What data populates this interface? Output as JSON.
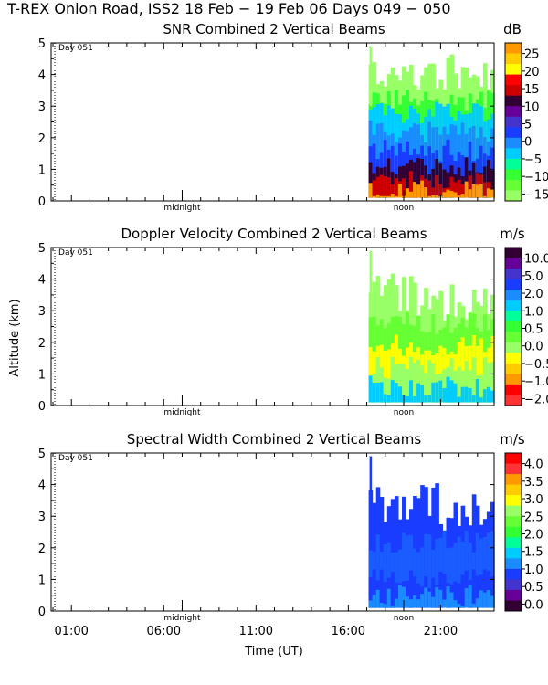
{
  "header": {
    "title": "T-REX Onion Road, ISS2  18 Feb − 19 Feb 06 Days 049 − 050"
  },
  "axes": {
    "ylabel": "Altitude (km)",
    "xlabel": "Time (UT)",
    "ylim": [
      0,
      5
    ],
    "yticks": [
      "0",
      "1",
      "2",
      "3",
      "4",
      "5"
    ],
    "xticks": [
      {
        "hour": 1,
        "label": "01:00"
      },
      {
        "hour": 6,
        "label": "06:00"
      },
      {
        "hour": 11,
        "label": "11:00"
      },
      {
        "hour": 16,
        "label": "16:00"
      },
      {
        "hour": 21,
        "label": "21:00"
      }
    ],
    "xlim_hours": [
      -0.1,
      23.9
    ],
    "midnight_label": "midnight",
    "noon_label": "noon",
    "day_label": "Day 051",
    "day_marker_hour": 0.1
  },
  "chart_data": [
    {
      "type": "heatmap",
      "title": "SNR Combined 2 Vertical Beams",
      "unit": "dB",
      "colorbar_ticks": [
        "25",
        "20",
        "15",
        "10",
        "5",
        "0",
        "−5",
        "−10",
        "−15"
      ],
      "colorbar_colors": [
        "#ff9900",
        "#ffcc00",
        "#ffff00",
        "#ff0000",
        "#cc0000",
        "#330033",
        "#660099",
        "#4433cc",
        "#1a3cff",
        "#1a8cff",
        "#00ccff",
        "#00ff99",
        "#33ff33",
        "#66ff33",
        "#99ff66"
      ],
      "data_window_hours": [
        17.1,
        23.9
      ],
      "layers": [
        {
          "top_km": 4.1,
          "color": "#99ff66"
        },
        {
          "top_km": 3.2,
          "color": "#33ff33"
        },
        {
          "top_km": 2.8,
          "color": "#00ccff"
        },
        {
          "top_km": 2.2,
          "color": "#1a8cff"
        },
        {
          "top_km": 1.6,
          "color": "#1a3cff"
        },
        {
          "top_km": 1.1,
          "color": "#330033"
        },
        {
          "top_km": 0.6,
          "color": "#cc0000"
        },
        {
          "top_km": 0.3,
          "color": "#ff9900"
        }
      ]
    },
    {
      "type": "heatmap",
      "title": "Doppler Velocity Combined 2 Vertical Beams",
      "unit": "m/s",
      "colorbar_ticks": [
        "10.0",
        "5.0",
        "2.0",
        "1.0",
        "0.5",
        "0.0",
        "−0.5",
        "−1.0",
        "−2.0"
      ],
      "colorbar_colors": [
        "#330033",
        "#660099",
        "#4433cc",
        "#1a3cff",
        "#1a8cff",
        "#00ccff",
        "#00ff99",
        "#33ff33",
        "#66ff33",
        "#99ff66",
        "#ffff00",
        "#ffcc00",
        "#ff9900",
        "#ff0000",
        "#ff3333"
      ],
      "data_window_hours": [
        17.1,
        23.9
      ],
      "layers": [
        {
          "top_km": 3.5,
          "color": "#99ff66"
        },
        {
          "top_km": 2.6,
          "color": "#66ff33"
        },
        {
          "top_km": 1.9,
          "color": "#ffff00"
        },
        {
          "top_km": 1.2,
          "color": "#99ff66"
        },
        {
          "top_km": 0.6,
          "color": "#00ccff"
        }
      ]
    },
    {
      "type": "heatmap",
      "title": "Spectral Width Combined 2 Vertical Beams",
      "unit": "m/s",
      "colorbar_ticks": [
        "4.0",
        "3.5",
        "3.0",
        "2.5",
        "2.0",
        "1.5",
        "1.0",
        "0.5",
        "0.0"
      ],
      "colorbar_colors": [
        "#ff0000",
        "#ff3333",
        "#ff9900",
        "#ffcc00",
        "#ffff00",
        "#99ff66",
        "#66ff33",
        "#33ff33",
        "#00ff99",
        "#00ccff",
        "#1a8cff",
        "#1a3cff",
        "#4433cc",
        "#660099",
        "#330033"
      ],
      "data_window_hours": [
        17.1,
        23.9
      ],
      "layers": [
        {
          "top_km": 3.5,
          "color": "#1a3cff"
        },
        {
          "top_km": 2.2,
          "color": "#1a5cff"
        },
        {
          "top_km": 1.0,
          "color": "#1a3cff"
        },
        {
          "top_km": 0.5,
          "color": "#1a8cff"
        }
      ]
    }
  ]
}
